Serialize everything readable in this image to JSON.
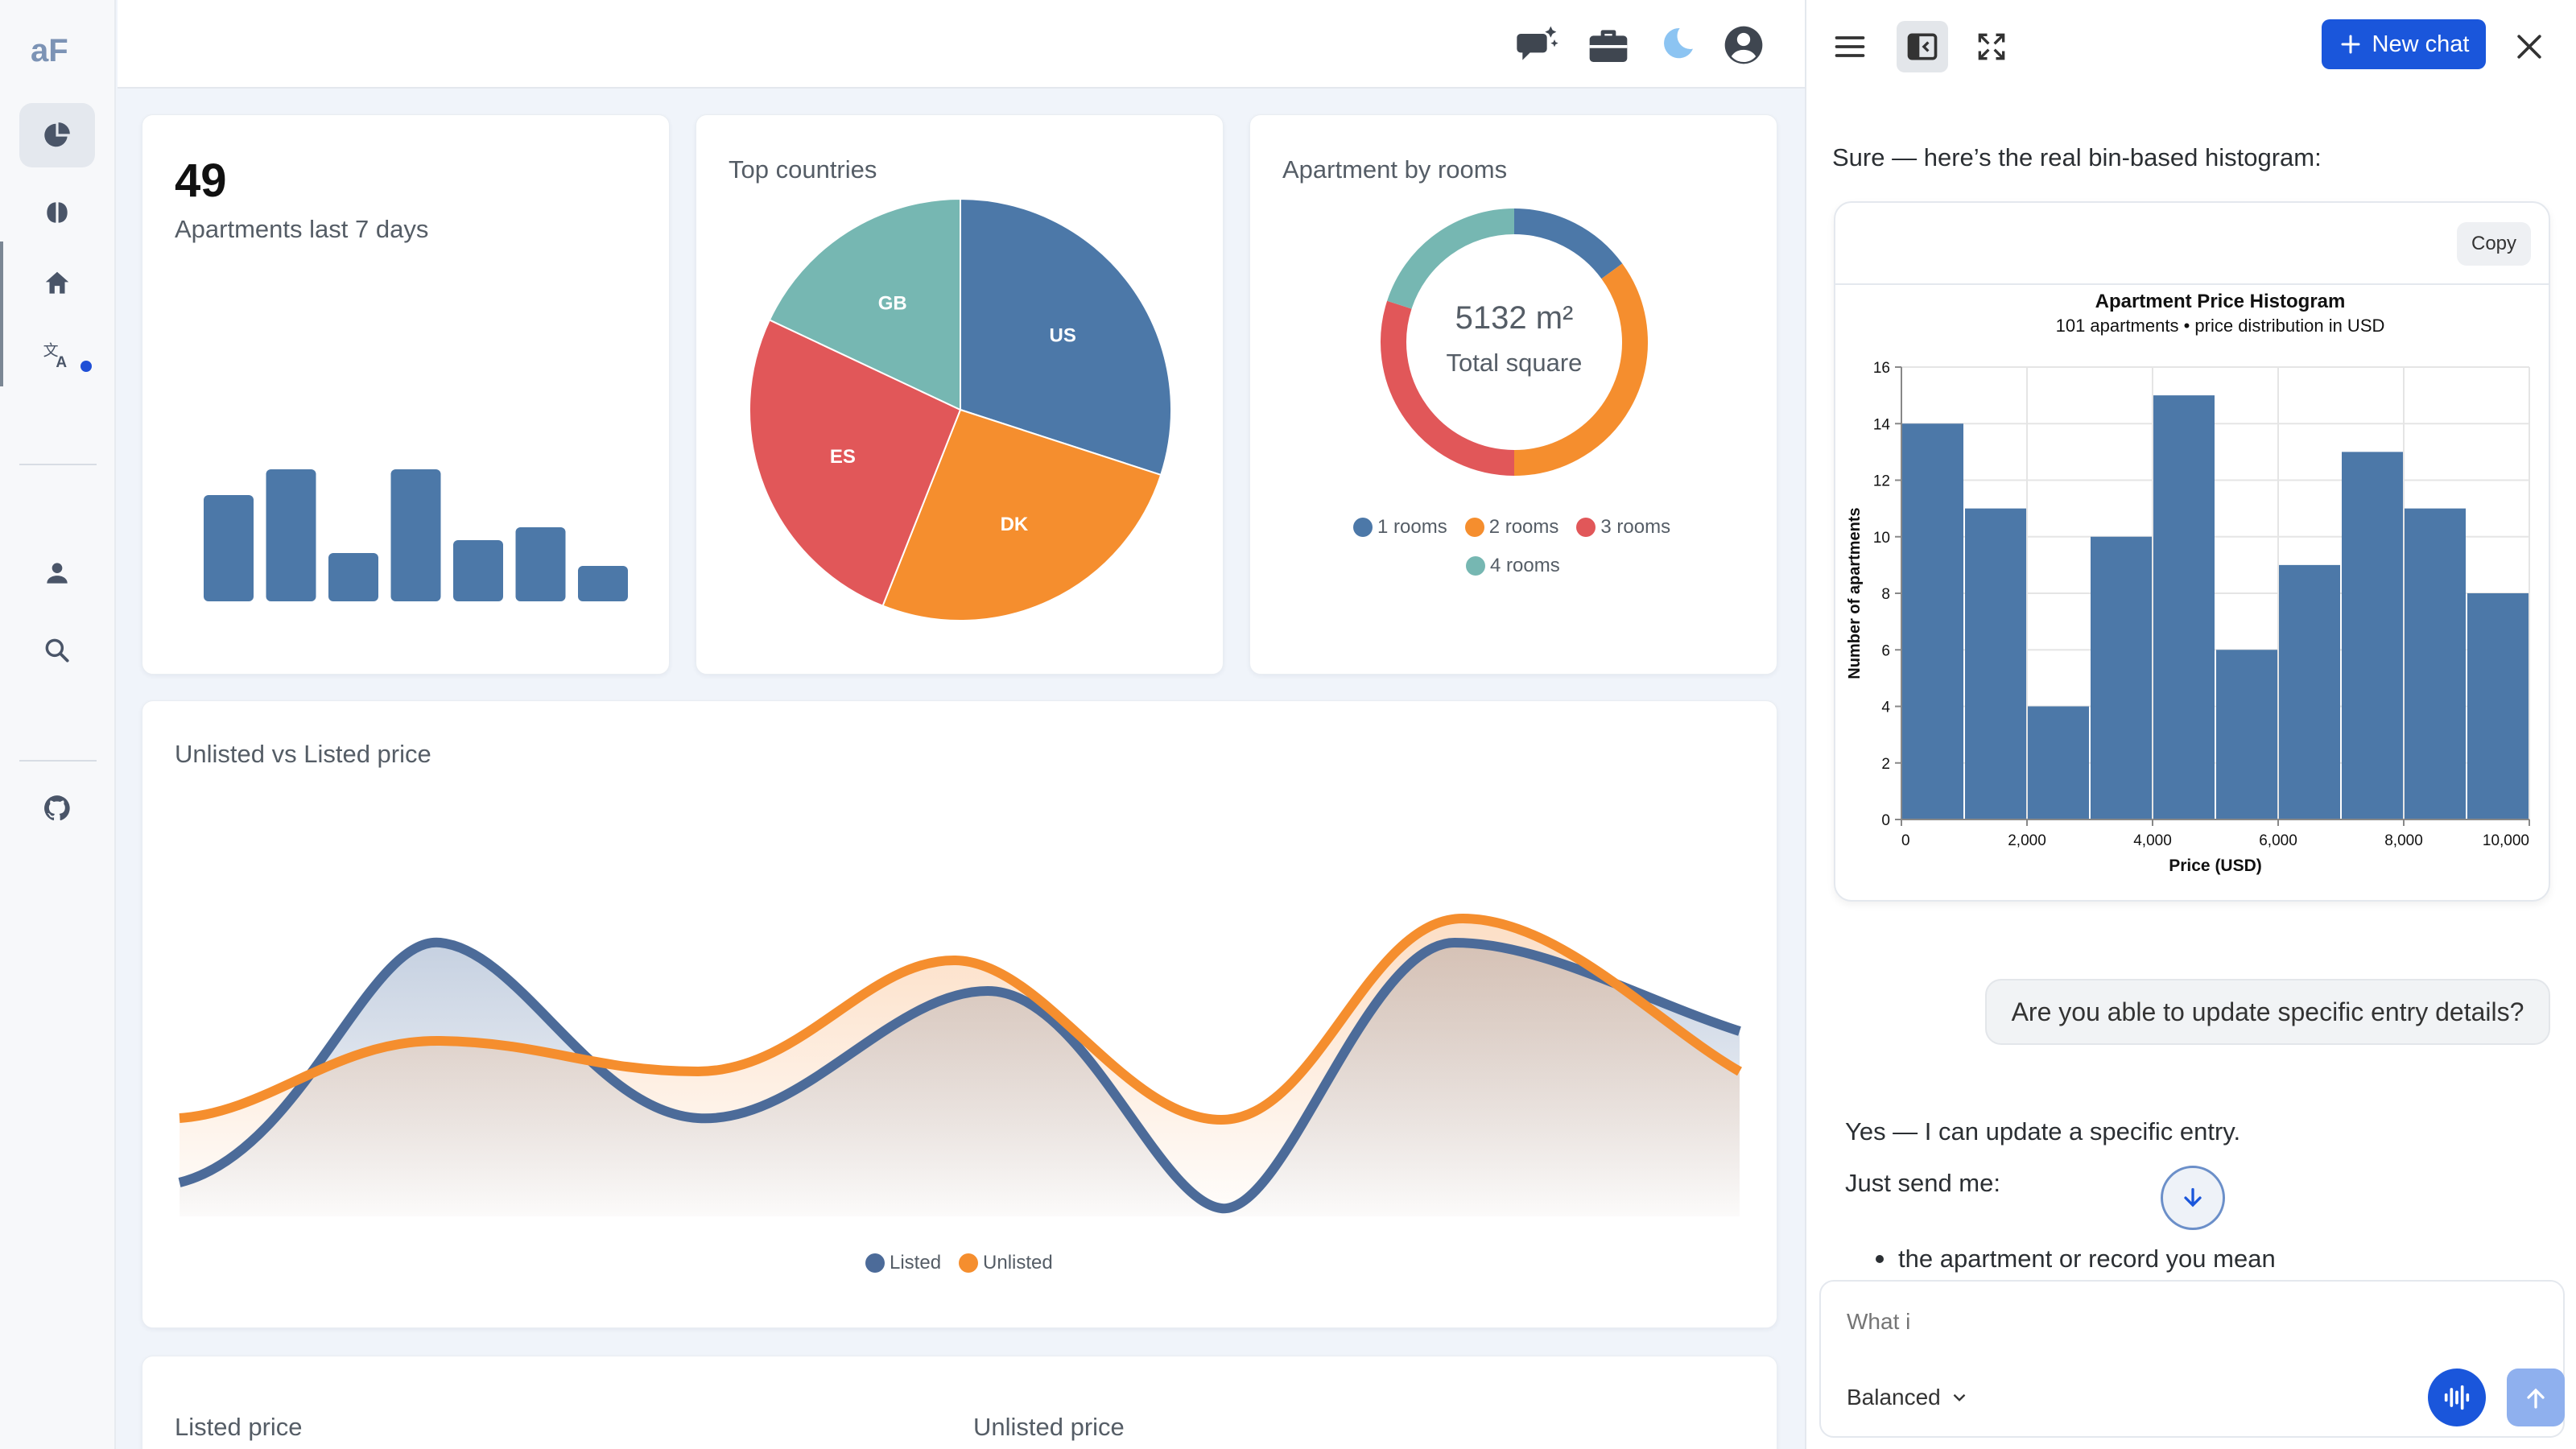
{
  "app": {
    "logo_text": "aF"
  },
  "sidebar": {
    "items": [
      {
        "icon": "pie-chart-icon"
      },
      {
        "icon": "brain-icon"
      },
      {
        "icon": "home-icon"
      },
      {
        "icon": "translate-icon"
      },
      {
        "icon": "user-icon"
      },
      {
        "icon": "search-icon"
      },
      {
        "icon": "github-icon"
      }
    ]
  },
  "topbar": {
    "icons": [
      "chat-sparkle-icon",
      "briefcase-icon",
      "moon-icon",
      "account-icon"
    ]
  },
  "dashboard": {
    "kpi": {
      "value": "49",
      "label": "Apartments last 7 days",
      "bars": [
        33,
        41,
        15,
        41,
        19,
        23,
        11
      ]
    },
    "top_countries": {
      "title": "Top countries",
      "slices": [
        {
          "label": "US",
          "value": 30,
          "color": "#4c78a8"
        },
        {
          "label": "DK",
          "value": 26,
          "color": "#f58e2e"
        },
        {
          "label": "ES",
          "value": 26,
          "color": "#e15759"
        },
        {
          "label": "GB",
          "value": 18,
          "color": "#76b7b2"
        }
      ]
    },
    "rooms": {
      "title": "Apartment by rooms",
      "center_value": "5132 m²",
      "center_label": "Total square",
      "slices": [
        {
          "label": "1 rooms",
          "value": 15,
          "color": "#4c78a8"
        },
        {
          "label": "2 rooms",
          "value": 35,
          "color": "#f58e2e"
        },
        {
          "label": "3 rooms",
          "value": 30,
          "color": "#e15759"
        },
        {
          "label": "4 rooms",
          "value": 20,
          "color": "#76b7b2"
        }
      ]
    },
    "price_compare": {
      "title": "Unlisted vs Listed price",
      "series": [
        {
          "name": "Listed",
          "color": "#4c6b99"
        },
        {
          "name": "Unlisted",
          "color": "#f58e2e"
        }
      ]
    },
    "bottom": {
      "left_title": "Listed price",
      "right_title": "Unlisted price"
    }
  },
  "chat": {
    "new_chat_label": "New chat",
    "intro": "Sure — here’s the real bin-based histogram:",
    "copy_label": "Copy",
    "user_message": "Are you able to update specific entry details?",
    "reply_1": "Yes — I can update a specific entry.",
    "reply_2": "Just send me:",
    "bullet_1": "the apartment or record you mean",
    "composer_placeholder": "What i",
    "mode": "Balanced"
  },
  "chart_data": {
    "type": "bar",
    "title": "Apartment Price Histogram",
    "subtitle": "101 apartments • price distribution in USD",
    "xlabel": "Price (USD)",
    "ylabel": "Number of apartments",
    "bin_edges": [
      0,
      1000,
      2000,
      3000,
      4000,
      5000,
      6000,
      7000,
      8000,
      9000,
      10000
    ],
    "values": [
      14,
      11,
      4,
      10,
      15,
      6,
      9,
      13,
      11,
      8
    ],
    "xlim": [
      0,
      10000
    ],
    "ylim": [
      0,
      16
    ],
    "x_ticks": [
      "0",
      "2,000",
      "4,000",
      "6,000",
      "8,000",
      "10,000"
    ],
    "y_ticks": [
      "0",
      "2",
      "4",
      "6",
      "8",
      "10",
      "12",
      "14",
      "16"
    ],
    "bar_color": "#4c78a8",
    "grid": true
  }
}
